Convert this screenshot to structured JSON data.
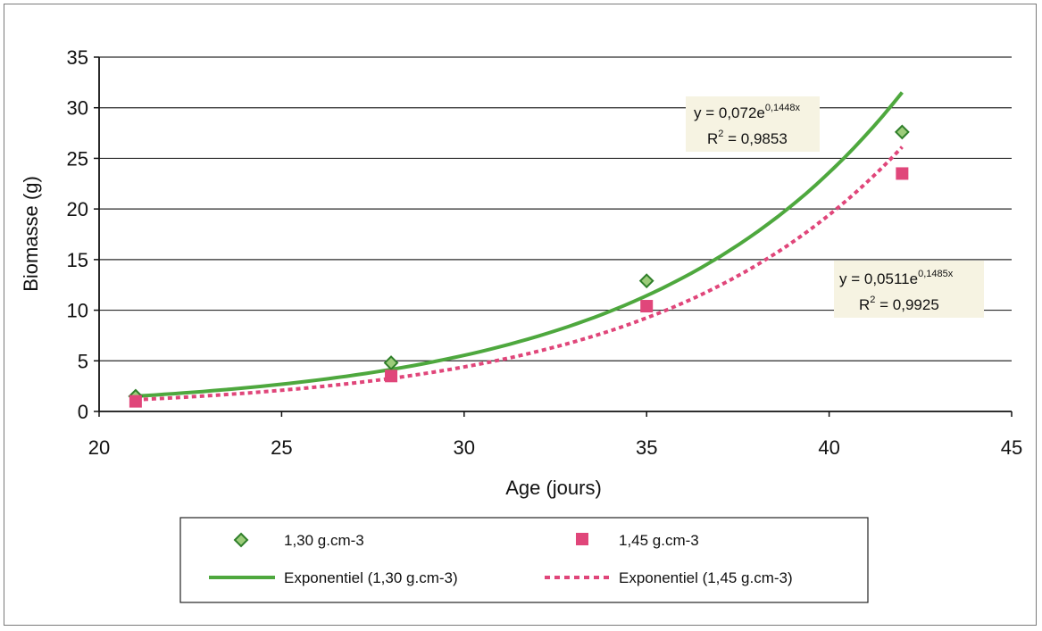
{
  "chart_data": {
    "type": "scatter",
    "title": "",
    "xlabel": "Age (jours)",
    "ylabel": "Biomasse (g)",
    "xlim": [
      20,
      45
    ],
    "ylim": [
      0,
      35
    ],
    "xticks": [
      "20",
      "25",
      "30",
      "35",
      "40",
      "45"
    ],
    "yticks": [
      "0",
      "5",
      "10",
      "15",
      "20",
      "25",
      "30",
      "35"
    ],
    "grid": "horizontal",
    "legend_position": "bottom",
    "series": [
      {
        "name": "1,30 g.cm-3",
        "marker": "diamond",
        "color": "#3f9a35",
        "x": [
          21,
          28,
          35,
          42
        ],
        "y": [
          1.5,
          4.8,
          12.9,
          27.6
        ]
      },
      {
        "name": "1,45 g.cm-3",
        "marker": "square",
        "color": "#e0467a",
        "x": [
          21,
          28,
          35,
          42
        ],
        "y": [
          1.0,
          3.5,
          10.4,
          23.5
        ]
      }
    ],
    "trendlines": [
      {
        "name": "Exponentiel (1,30 g.cm-3)",
        "style": "solid",
        "color": "#4ea83e",
        "a": 0.072,
        "b": 0.1448,
        "equation_prefix": "y = 0,072e",
        "equation_exp": "0,1448x",
        "r2_label": "R",
        "r2_value": " = 0,9853"
      },
      {
        "name": "Exponentiel (1,45 g.cm-3)",
        "style": "dotted",
        "color": "#e0467a",
        "a": 0.0511,
        "b": 0.1485,
        "equation_prefix": "y = 0,0511e",
        "equation_exp": "0,1485x",
        "r2_label": "R",
        "r2_value": " = 0,9925"
      }
    ]
  }
}
